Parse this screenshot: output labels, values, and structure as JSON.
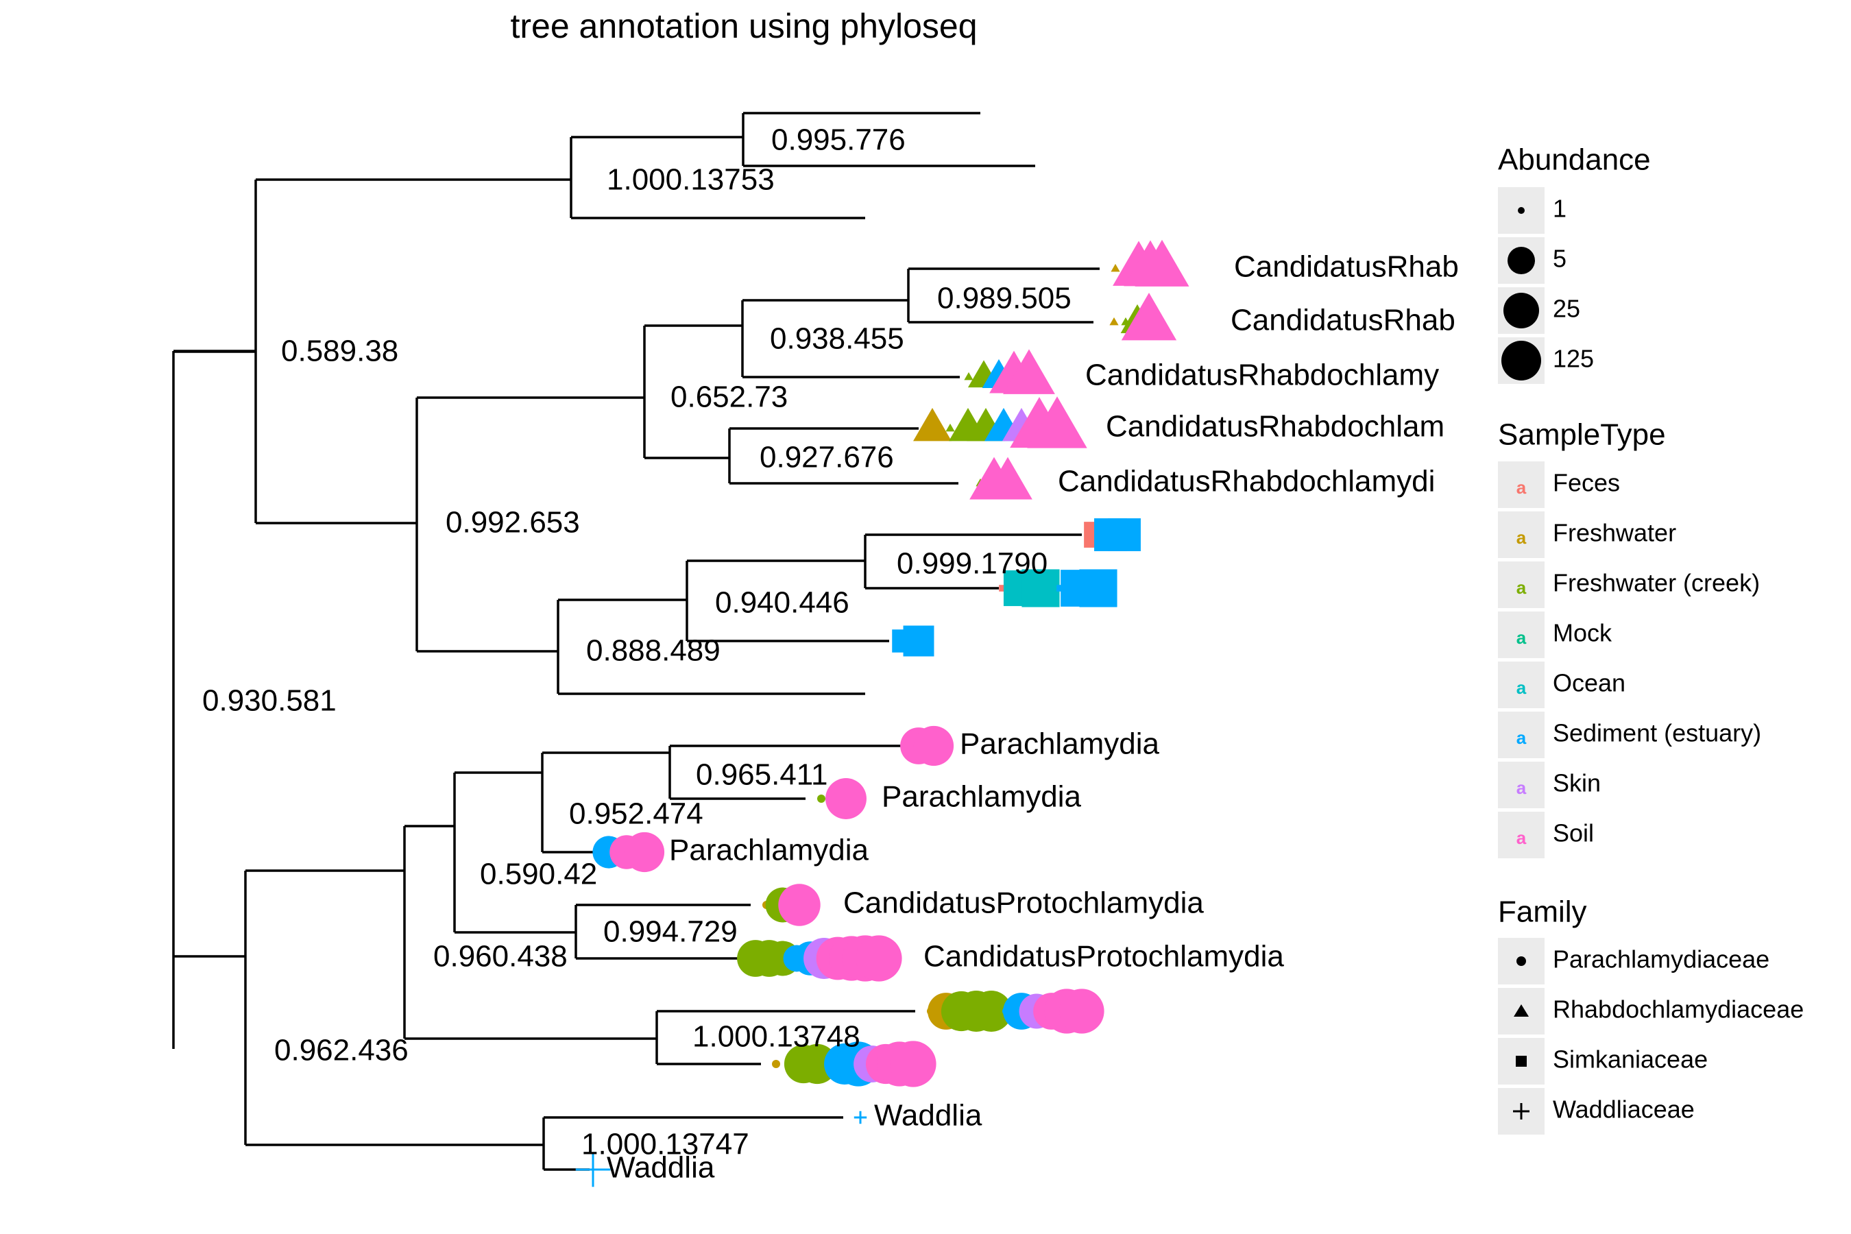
{
  "title": "tree annotation using phyloseq",
  "colors": {
    "Feces": "#F8766D",
    "Freshwater": "#C49A00",
    "Freshwater (creek)": "#7CAE00",
    "Mock": "#00C08B",
    "Ocean": "#00BFC4",
    "Sediment (estuary)": "#00A9FF",
    "Skin": "#C77CFF",
    "Soil": "#FF61CC"
  },
  "chart_data": {
    "type": "phylogenetic-tree",
    "nodes": [
      {
        "id": "root",
        "label": "0.930.581",
        "children": [
          "n1",
          "n2"
        ]
      },
      {
        "id": "n1",
        "label": "0.589.38",
        "children": [
          "n3",
          "n4"
        ]
      },
      {
        "id": "n3",
        "label": "1.000.13753",
        "children": [
          "n5",
          "t3"
        ]
      },
      {
        "id": "n5",
        "label": "0.995.776",
        "children": [
          "t1",
          "t2"
        ]
      },
      {
        "id": "n4",
        "label": "0.992.653",
        "children": [
          "n6",
          "n7"
        ]
      },
      {
        "id": "n6",
        "label": "0.652.73",
        "children": [
          "n8",
          "n9"
        ]
      },
      {
        "id": "n8",
        "label": "0.938.455",
        "children": [
          "n10",
          "t6"
        ]
      },
      {
        "id": "n10",
        "label": "0.989.505",
        "children": [
          "t4",
          "t5"
        ]
      },
      {
        "id": "n9",
        "label": "0.927.676",
        "children": [
          "t7",
          "t8"
        ]
      },
      {
        "id": "n7",
        "label": "0.888.489",
        "children": [
          "n11",
          "t12"
        ]
      },
      {
        "id": "n11",
        "label": "0.940.446",
        "children": [
          "n12",
          "t11"
        ]
      },
      {
        "id": "n12",
        "label": "0.999.1790",
        "children": [
          "t9",
          "t10"
        ]
      },
      {
        "id": "n2",
        "label": "0.962.436",
        "children": [
          "n13",
          "n14"
        ]
      },
      {
        "id": "n13",
        "label": "",
        "children": [
          "n15",
          "n16"
        ]
      },
      {
        "id": "n15",
        "label": "0.960.438",
        "children": [
          "n17",
          "n18"
        ]
      },
      {
        "id": "n17",
        "label": "0.590.42",
        "children": [
          "n19",
          "t15"
        ]
      },
      {
        "id": "n19",
        "label": "0.952.474",
        "children": [
          "n20",
          "t14"
        ]
      },
      {
        "id": "n20",
        "label": "0.965.411",
        "children": [
          "t13"
        ]
      },
      {
        "id": "n18",
        "label": "0.994.729",
        "children": [
          "t16",
          "t17"
        ]
      },
      {
        "id": "n16",
        "label": "1.000.13748",
        "children": [
          "t18",
          "t19"
        ]
      },
      {
        "id": "n14",
        "label": "1.000.13747",
        "children": [
          "t20",
          "t21"
        ]
      }
    ],
    "tips": [
      {
        "id": "t1",
        "label": "",
        "family": "",
        "samples": []
      },
      {
        "id": "t2",
        "label": "",
        "family": "",
        "samples": []
      },
      {
        "id": "t3",
        "label": "",
        "family": "",
        "samples": []
      },
      {
        "id": "t4",
        "label": "CandidatusRhab",
        "family": "Rhabdochlamydiaceae",
        "samples": [
          [
            "Freshwater",
            1
          ],
          [
            "Freshwater (creek)",
            1
          ],
          [
            "Soil",
            80
          ],
          [
            "Soil",
            90
          ],
          [
            "Soil",
            100
          ]
        ]
      },
      {
        "id": "t5",
        "label": "CandidatusRhab",
        "family": "Rhabdochlamydiaceae",
        "samples": [
          [
            "Freshwater",
            1
          ],
          [
            "Freshwater (creek)",
            1
          ],
          [
            "Freshwater (creek)",
            12
          ],
          [
            "Soil",
            110
          ]
        ]
      },
      {
        "id": "t6",
        "label": "CandidatusRhabdochlamy",
        "family": "Rhabdochlamydiaceae",
        "samples": [
          [
            "Freshwater (creek)",
            1
          ],
          [
            "Freshwater (creek)",
            10
          ],
          [
            "Sediment (estuary)",
            12
          ],
          [
            "Soil",
            60
          ],
          [
            "Soil",
            80
          ]
        ]
      },
      {
        "id": "t7",
        "label": "CandidatusRhabdochlam",
        "family": "Rhabdochlamydiaceae",
        "samples": [
          [
            "Freshwater",
            20
          ],
          [
            "Freshwater (creek)",
            1
          ],
          [
            "Freshwater (creek)",
            20
          ],
          [
            "Freshwater (creek)",
            20
          ],
          [
            "Sediment (estuary)",
            20
          ],
          [
            "Skin",
            20
          ],
          [
            "Soil",
            160
          ],
          [
            "Soil",
            180
          ]
        ]
      },
      {
        "id": "t8",
        "label": "CandidatusRhabdochlamydi",
        "family": "Rhabdochlamydiaceae",
        "samples": [
          [
            "Freshwater (creek)",
            1
          ],
          [
            "Soil",
            60
          ],
          [
            "Soil",
            60
          ]
        ]
      },
      {
        "id": "t9",
        "label": "",
        "family": "Simkaniaceae",
        "samples": [
          [
            "Feces",
            15
          ],
          [
            "Sediment (estuary)",
            40
          ],
          [
            "Sediment (estuary)",
            40
          ]
        ]
      },
      {
        "id": "t10",
        "label": "",
        "family": "Simkaniaceae",
        "samples": [
          [
            "Feces",
            1
          ],
          [
            "Ocean",
            60
          ],
          [
            "Ocean",
            80
          ],
          [
            "Sediment (estuary)",
            1
          ],
          [
            "Sediment (estuary)",
            70
          ],
          [
            "Sediment (estuary)",
            80
          ]
        ]
      },
      {
        "id": "t11",
        "label": "",
        "family": "Simkaniaceae",
        "samples": [
          [
            "Sediment (estuary)",
            10
          ],
          [
            "Sediment (estuary)",
            30
          ]
        ]
      },
      {
        "id": "t12",
        "label": "",
        "family": "",
        "samples": []
      },
      {
        "id": "t13",
        "label": "Parachlamydia",
        "family": "Parachlamydiaceae",
        "samples": [
          [
            "Soil",
            25
          ],
          [
            "Soil",
            35
          ]
        ]
      },
      {
        "id": "t14",
        "label": "Parachlamydia",
        "family": "Parachlamydiaceae",
        "samples": [
          [
            "Freshwater (creek)",
            1
          ],
          [
            "Soil",
            1
          ],
          [
            "Soil",
            40
          ]
        ]
      },
      {
        "id": "t15",
        "label": "Parachlamydia",
        "family": "Parachlamydiaceae",
        "samples": [
          [
            "Sediment (estuary)",
            15
          ],
          [
            "Soil",
            18
          ],
          [
            "Soil",
            35
          ]
        ]
      },
      {
        "id": "t16",
        "label": "CandidatusProtochlamydia",
        "family": "Parachlamydiaceae",
        "samples": [
          [
            "Freshwater",
            1
          ],
          [
            "Freshwater (creek)",
            20
          ],
          [
            "Soil",
            45
          ]
        ]
      },
      {
        "id": "t17",
        "label": "CandidatusProtochlamydia",
        "family": "Parachlamydiaceae",
        "samples": [
          [
            "Freshwater (creek)",
            25
          ],
          [
            "Freshwater (creek)",
            25
          ],
          [
            "Freshwater (creek)",
            20
          ],
          [
            "Sediment (estuary)",
            8
          ],
          [
            "Sediment (estuary)",
            18
          ],
          [
            "Skin",
            40
          ],
          [
            "Soil",
            50
          ],
          [
            "Soil",
            60
          ],
          [
            "Soil",
            70
          ],
          [
            "Soil",
            70
          ]
        ]
      },
      {
        "id": "t18",
        "label": "",
        "family": "Parachlamydiaceae",
        "samples": [
          [
            "Freshwater",
            1
          ],
          [
            "Freshwater",
            25
          ],
          [
            "Freshwater (creek)",
            35
          ],
          [
            "Freshwater (creek)",
            40
          ],
          [
            "Freshwater (creek)",
            40
          ],
          [
            "Sediment (estuary)",
            1
          ],
          [
            "Sediment (estuary)",
            25
          ],
          [
            "Skin",
            20
          ],
          [
            "Soil",
            25
          ],
          [
            "Soil",
            60
          ],
          [
            "Soil",
            60
          ]
        ]
      },
      {
        "id": "t19",
        "label": "",
        "family": "Parachlamydiaceae",
        "samples": [
          [
            "Freshwater",
            1
          ],
          [
            "Freshwater (creek)",
            1
          ],
          [
            "Freshwater (creek)",
            30
          ],
          [
            "Freshwater (creek)",
            35
          ],
          [
            "Sediment (estuary)",
            1
          ],
          [
            "Sediment (estuary)",
            40
          ],
          [
            "Sediment (estuary)",
            60
          ],
          [
            "Skin",
            25
          ],
          [
            "Soil",
            35
          ],
          [
            "Soil",
            60
          ],
          [
            "Soil",
            70
          ]
        ]
      },
      {
        "id": "t20",
        "label": "Waddlia",
        "family": "Waddliaceae",
        "samples": [
          [
            "Sediment (estuary)",
            1
          ]
        ]
      },
      {
        "id": "t21",
        "label": "Waddlia",
        "family": "Waddliaceae",
        "samples": [
          [
            "Sediment (estuary)",
            100
          ]
        ]
      }
    ]
  },
  "legend": {
    "abundance": {
      "title": "Abundance",
      "items": [
        {
          "label": "1",
          "value": 1
        },
        {
          "label": "5",
          "value": 5
        },
        {
          "label": "25",
          "value": 25
        },
        {
          "label": "125",
          "value": 125
        }
      ]
    },
    "sampletype": {
      "title": "SampleType",
      "items": [
        "Feces",
        "Freshwater",
        "Freshwater (creek)",
        "Mock",
        "Ocean",
        "Sediment (estuary)",
        "Skin",
        "Soil"
      ]
    },
    "family": {
      "title": "Family",
      "items": [
        {
          "label": "Parachlamydiaceae",
          "shape": "circle"
        },
        {
          "label": "Rhabdochlamydiaceae",
          "shape": "triangle"
        },
        {
          "label": "Simkaniaceae",
          "shape": "square"
        },
        {
          "label": "Waddliaceae",
          "shape": "plus"
        }
      ]
    }
  }
}
